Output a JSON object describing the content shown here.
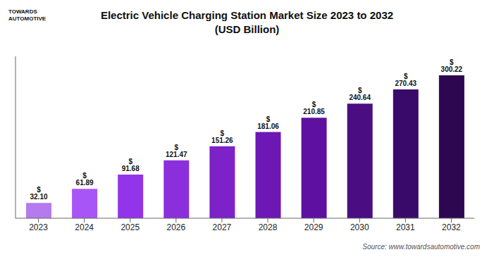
{
  "chart_data": {
    "type": "bar",
    "title": "Electric Vehicle Charging Station Market Size 2023 to 2032",
    "subtitle": "(USD Billion)",
    "categories": [
      "2023",
      "2024",
      "2025",
      "2026",
      "2027",
      "2028",
      "2029",
      "2030",
      "2031",
      "2032"
    ],
    "values": [
      32.1,
      61.89,
      91.68,
      121.47,
      151.26,
      181.06,
      210.85,
      240.64,
      270.43,
      300.22
    ],
    "value_labels": [
      "$ 32.10",
      "$ 61.89",
      "$ 91.68",
      "$ 121.47",
      "$ 151.26",
      "$ 181.06",
      "$ 210.85",
      "$ 240.64",
      "$ 270.43",
      "$ 300.22"
    ],
    "colors": [
      "#b57bee",
      "#a855f7",
      "#9333ea",
      "#8b2fdc",
      "#7c22c8",
      "#6d18b4",
      "#5e10a0",
      "#4a0d82",
      "#3a0a6a",
      "#2d0850"
    ],
    "ylim": [
      0,
      340
    ],
    "yticks": [],
    "grid": false,
    "tick_labels": "x",
    "data_labels": true,
    "annotations": [
      "TOWARDS\nAUTOMOTIVE",
      "Source: www.towardsautomotive.com"
    ]
  }
}
